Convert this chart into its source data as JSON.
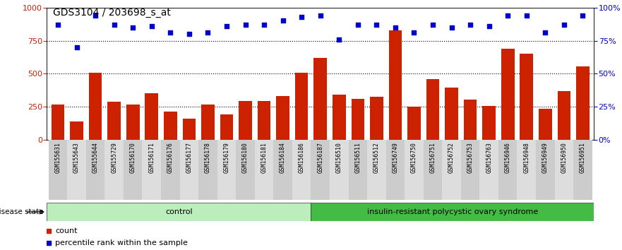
{
  "title": "GDS3104 / 203698_s_at",
  "samples": [
    "GSM155631",
    "GSM155643",
    "GSM155644",
    "GSM155729",
    "GSM156170",
    "GSM156171",
    "GSM156176",
    "GSM156177",
    "GSM156178",
    "GSM156179",
    "GSM156180",
    "GSM156181",
    "GSM156184",
    "GSM156186",
    "GSM156187",
    "GSM156510",
    "GSM156511",
    "GSM156512",
    "GSM156749",
    "GSM156750",
    "GSM156751",
    "GSM156752",
    "GSM156753",
    "GSM156763",
    "GSM156946",
    "GSM156948",
    "GSM156949",
    "GSM156950",
    "GSM156951"
  ],
  "bar_values": [
    270,
    140,
    510,
    290,
    270,
    355,
    215,
    160,
    270,
    195,
    295,
    295,
    330,
    510,
    620,
    340,
    310,
    325,
    830,
    250,
    460,
    395,
    305,
    255,
    690,
    650,
    235,
    370,
    555
  ],
  "scatter_values": [
    87,
    70,
    94,
    87,
    85,
    86,
    81,
    80,
    81,
    86,
    87,
    87,
    90,
    93,
    94,
    76,
    87,
    87,
    85,
    81,
    87,
    85,
    87,
    86,
    94,
    94,
    81,
    87,
    94
  ],
  "control_count": 14,
  "disease_label": "insulin-resistant polycystic ovary syndrome",
  "control_label": "control",
  "disease_state_label": "disease state",
  "bar_color": "#cc2200",
  "scatter_color": "#0000cc",
  "ylim_left": [
    0,
    1000
  ],
  "ylim_right": [
    0,
    100
  ],
  "yticks_left": [
    0,
    250,
    500,
    750,
    1000
  ],
  "yticks_right": [
    0,
    25,
    50,
    75,
    100
  ],
  "hlines": [
    250,
    500,
    750
  ],
  "legend_count_label": "count",
  "legend_pct_label": "percentile rank within the sample",
  "bg_color": "#ffffff",
  "control_bg": "#aaddaa",
  "disease_bg": "#44bb44",
  "title_fontsize": 10,
  "tick_fontsize": 7,
  "bar_width": 0.7
}
